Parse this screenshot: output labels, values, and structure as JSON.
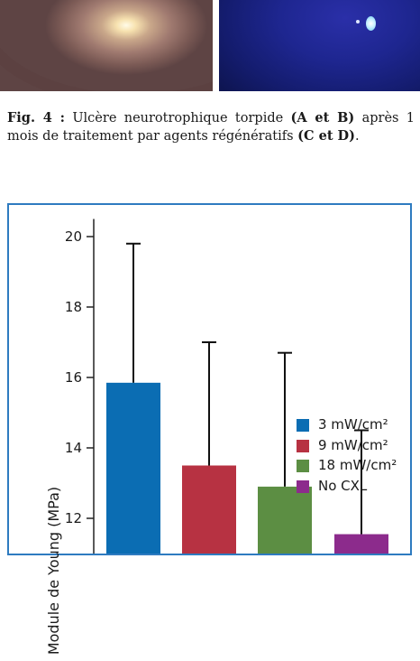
{
  "caption": {
    "fig_label": "Fig. 4 :",
    "parts": [
      {
        "text": "Ulcère neurotrophique torpide ",
        "bold": false
      },
      {
        "text": "(A et B)",
        "bold": true
      },
      {
        "text": " après 1 mois de traitement par agents régénératifs ",
        "bold": false
      },
      {
        "text": "(C et D)",
        "bold": true
      },
      {
        "text": ".",
        "bold": false
      }
    ]
  },
  "chart_data": {
    "type": "bar",
    "ylabel": "Module de Young (MPa)",
    "ylim": [
      11,
      20.5
    ],
    "yticks": [
      12,
      14,
      16,
      18,
      20
    ],
    "series": [
      {
        "name": "3 mW/cm²",
        "value": 15.85,
        "error_top": 19.8,
        "color": "#0b6db3"
      },
      {
        "name": "9 mW/cm²",
        "value": 13.5,
        "error_top": 17.0,
        "color": "#b73242"
      },
      {
        "name": "18 mW/cm²",
        "value": 12.9,
        "error_top": 16.7,
        "color": "#5c8e43"
      },
      {
        "name": "No CXL",
        "value": 11.55,
        "error_top": 14.5,
        "color": "#8c2b8c"
      }
    ],
    "legend_position": "top-right",
    "grid": false
  }
}
